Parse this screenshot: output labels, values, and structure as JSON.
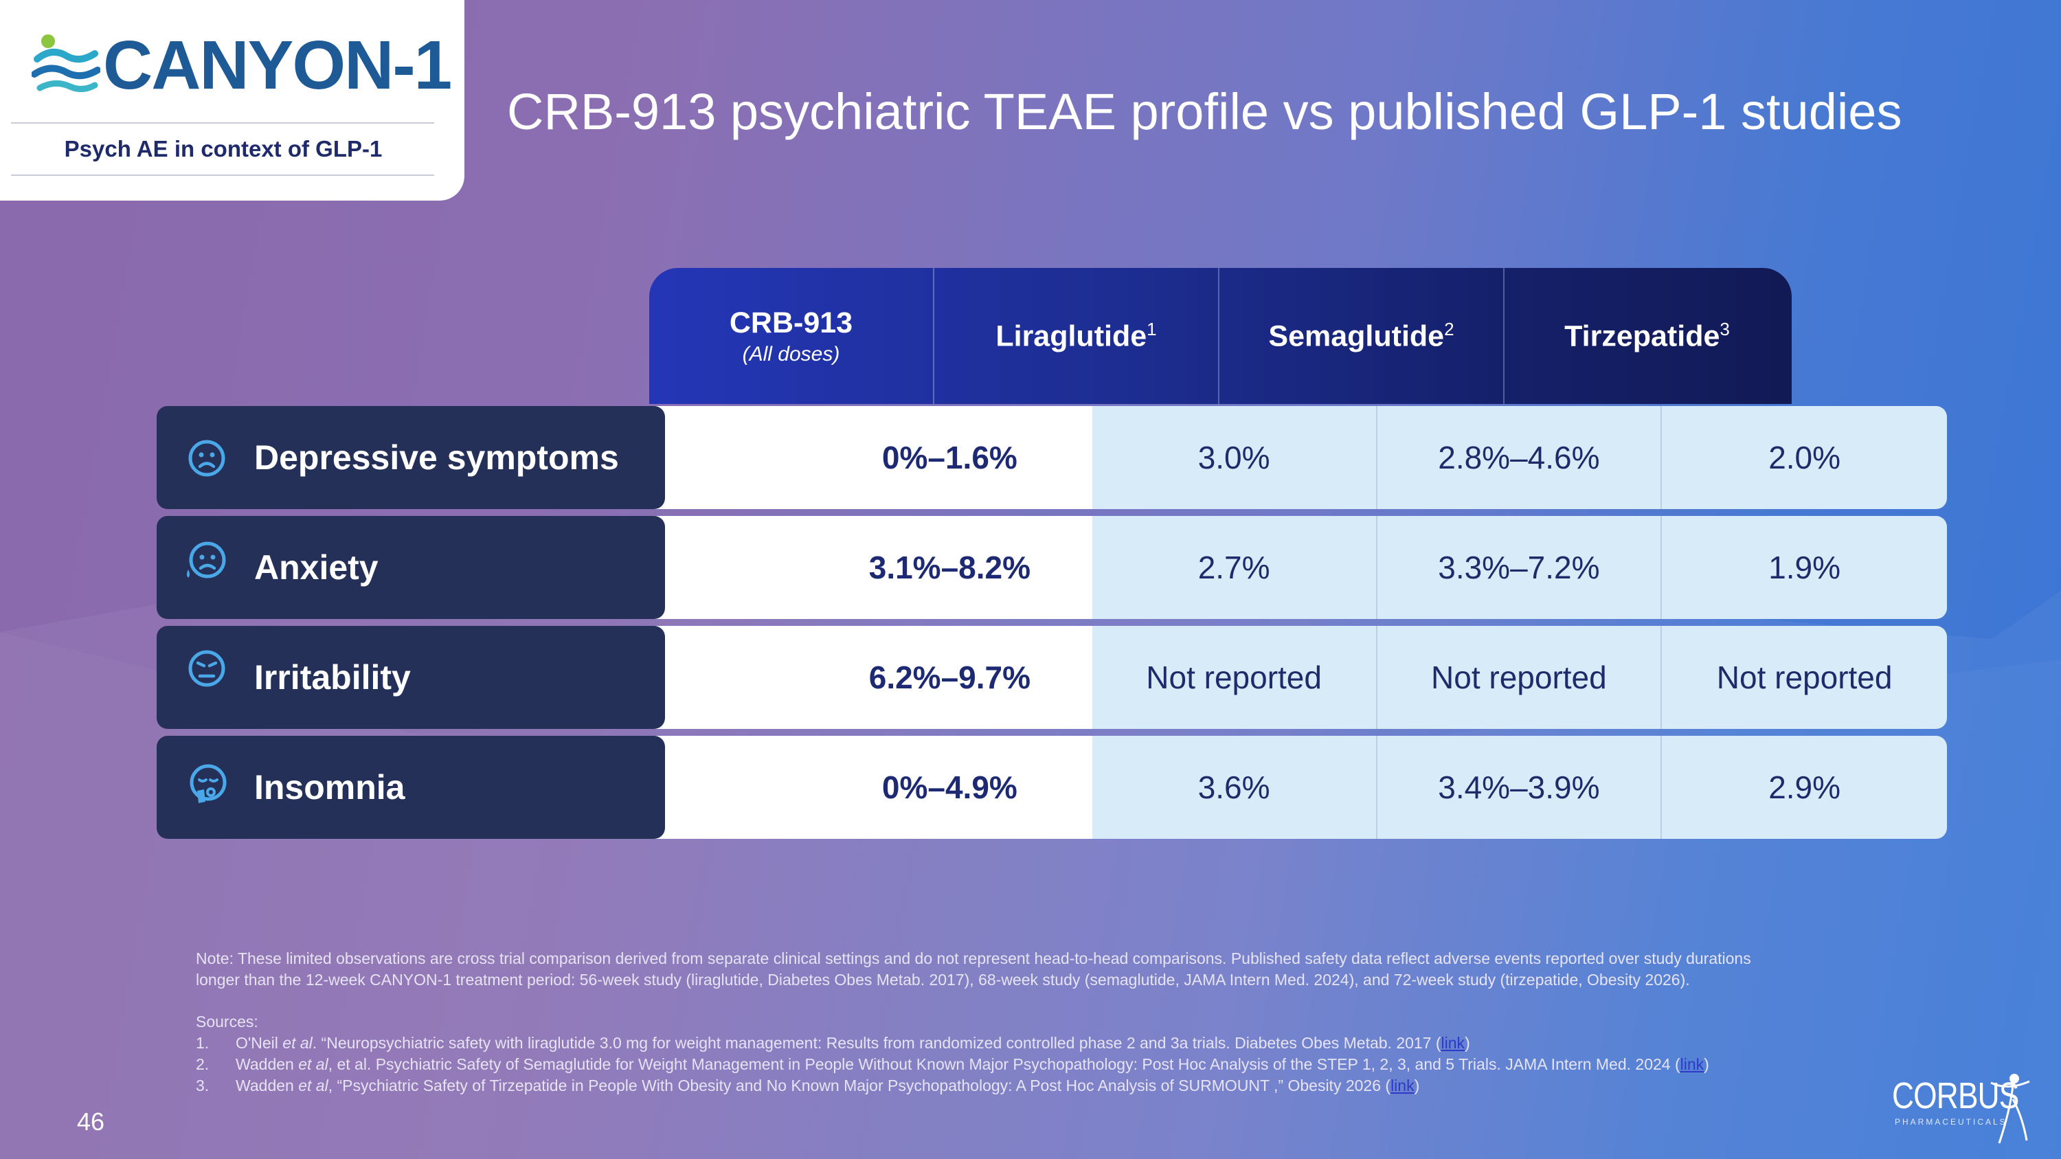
{
  "logo": {
    "name": "CANYON-1",
    "subtitle": "Psych AE in context of GLP-1"
  },
  "title": "CRB-913 psychiatric TEAE profile vs published GLP-1 studies",
  "table": {
    "columns": [
      {
        "name": "CRB-913",
        "sub": "(All doses)",
        "sup": ""
      },
      {
        "name": "Liraglutide",
        "sub": "",
        "sup": "1"
      },
      {
        "name": "Semaglutide",
        "sub": "",
        "sup": "2"
      },
      {
        "name": "Tirzepatide",
        "sub": "",
        "sup": "3"
      }
    ],
    "rows": [
      {
        "label": "Depressive symptoms",
        "icon": "sad-face-icon",
        "values": [
          "0%–1.6%",
          "3.0%",
          "2.8%–4.6%",
          "2.0%"
        ]
      },
      {
        "label": "Anxiety",
        "icon": "anxious-face-icon",
        "values": [
          "3.1%–8.2%",
          "2.7%",
          "3.3%–7.2%",
          "1.9%"
        ]
      },
      {
        "label": "Irritability",
        "icon": "irritated-face-icon",
        "values": [
          "6.2%–9.7%",
          "Not reported",
          "Not reported",
          "Not reported"
        ]
      },
      {
        "label": "Insomnia",
        "icon": "tired-face-icon",
        "values": [
          "0%–4.9%",
          "3.6%",
          "3.4%–3.9%",
          "2.9%"
        ]
      }
    ]
  },
  "notes": {
    "note_line1": "Note: These limited observations are cross trial comparison derived from separate clinical settings and do not represent head-to-head comparisons. Published safety data reflect adverse events reported over study durations",
    "note_line2": "longer than the 12-week CANYON-1 treatment period: 56-week study (liraglutide, Diabetes Obes Metab. 2017), 68-week study (semaglutide, JAMA Intern Med. 2024), and 72-week study (tirzepatide, Obesity 2026).",
    "sources_title": "Sources:",
    "sources": [
      {
        "num": "1.",
        "pre": "O'Neil ",
        "etal": "et al",
        "text": ". “Neuropsychiatric safety with liraglutide 3.0 mg for weight management: Results from randomized controlled phase 2 and 3a trials. Diabetes Obes Metab. 2017 (",
        "link": "link",
        "post": ")"
      },
      {
        "num": "2.",
        "pre": "Wadden ",
        "etal": "et al",
        "text": ", et al. Psychiatric Safety of Semaglutide for Weight Management in People Without Known Major Psychopathology: Post Hoc Analysis of the STEP 1, 2, 3, and 5 Trials. JAMA Intern Med. 2024 (",
        "link": "link",
        "post": ")"
      },
      {
        "num": "3.",
        "pre": "Wadden ",
        "etal": "et al",
        "text": ", “Psychiatric Safety of Tirzepatide in People With Obesity and No Known Major Psychopathology: A Post Hoc Analysis of SURMOUNT ,” Obesity 2026 (",
        "link": "link",
        "post": ")"
      }
    ]
  },
  "page_number": "46",
  "footer_logo": {
    "name": "CORBUS",
    "sub": "PHARMACEUTICALS"
  }
}
